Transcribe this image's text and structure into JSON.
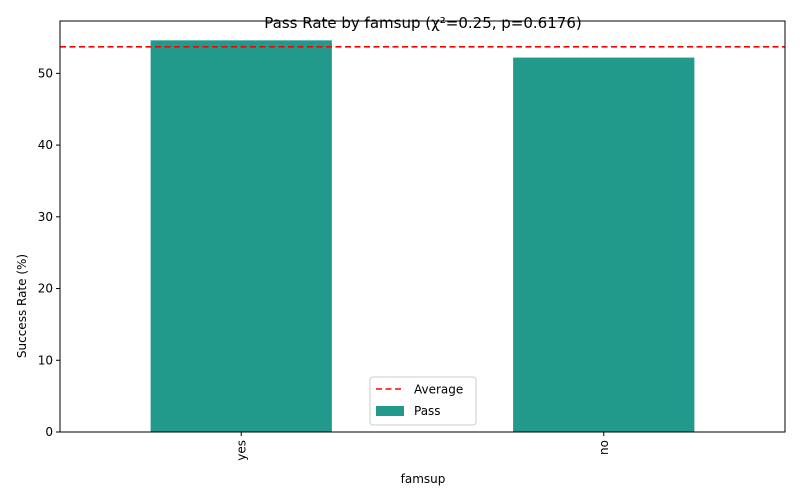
{
  "chart_data": {
    "type": "bar",
    "title": "Pass Rate by famsup (χ²=0.25, p=0.6176)",
    "xlabel": "famsup",
    "ylabel": "Success Rate (%)",
    "categories": [
      "yes",
      "no"
    ],
    "series": [
      {
        "name": "Pass",
        "values": [
          54.6,
          52.2
        ]
      }
    ],
    "average": {
      "name": "Average",
      "value": 53.7
    },
    "ylim": [
      0,
      57.3
    ],
    "yticks": [
      0,
      10,
      20,
      30,
      40,
      50
    ],
    "legend_position": "bottom-center",
    "grid": false,
    "colors": {
      "bar": "#21998b",
      "average_line": "#ff0000"
    }
  }
}
